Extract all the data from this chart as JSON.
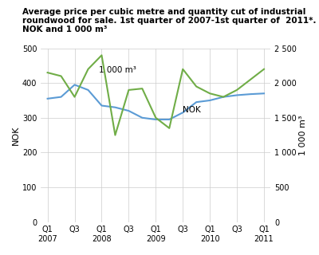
{
  "title_line1": "Average price per cubic metre and quantity cut of industrial",
  "title_line2": "roundwood for sale. 1st quarter of 2007-1st quarter of  2011*.",
  "title_line3": "NOK and 1 000 m³",
  "ylabel_left": "NOK",
  "ylabel_right": "1 000 m³",
  "x_labels": [
    "Q1\n2007",
    "Q3",
    "Q1\n2008",
    "Q3",
    "Q1\n2009",
    "Q3",
    "Q1\n2010",
    "Q3",
    "Q1\n2011"
  ],
  "x_positions": [
    0,
    2,
    4,
    6,
    8,
    10,
    12,
    14,
    16
  ],
  "nok_x": [
    0,
    1,
    2,
    3,
    4,
    5,
    6,
    7,
    8,
    9,
    10,
    11,
    12,
    13,
    14,
    15,
    16
  ],
  "nok_values": [
    355,
    360,
    395,
    380,
    335,
    330,
    320,
    300,
    295,
    295,
    315,
    345,
    350,
    360,
    365,
    368,
    370
  ],
  "vol_x": [
    0,
    1,
    2,
    3,
    4,
    5,
    6,
    7,
    8,
    9,
    10,
    11,
    12,
    13,
    14,
    15,
    16
  ],
  "vol_values": [
    2150,
    2100,
    1800,
    2200,
    2400,
    1250,
    1900,
    1920,
    1500,
    1350,
    2200,
    1950,
    1850,
    1800,
    1900,
    2050,
    2200
  ],
  "nok_color": "#5b9bd5",
  "vol_color": "#70ad47",
  "ylim_left": [
    0,
    500
  ],
  "ylim_right": [
    0,
    2500
  ],
  "yticks_left": [
    0,
    100,
    200,
    300,
    400,
    500
  ],
  "yticks_right": [
    0,
    500,
    1000,
    1500,
    2000,
    2500
  ],
  "annotation_nok": "NOK",
  "annotation_vol": "1 000 m³",
  "bg_color": "#ffffff",
  "grid_color": "#cccccc"
}
